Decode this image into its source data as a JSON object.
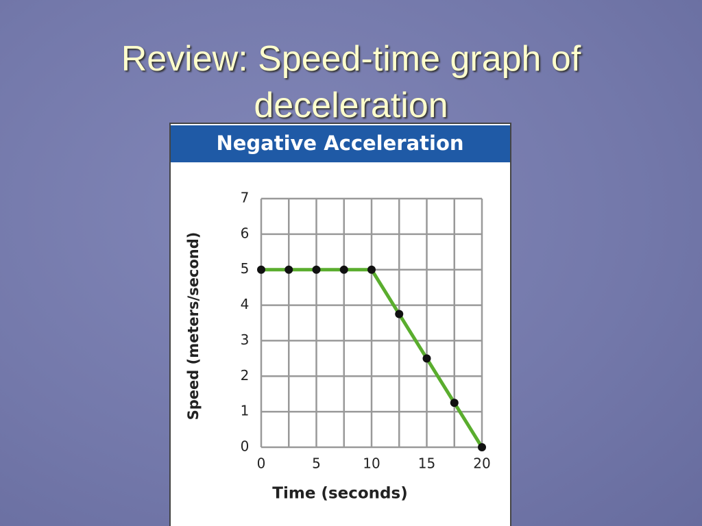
{
  "slide_title": "Review: Speed-time graph of deceleration",
  "chart_data": {
    "type": "line",
    "title": "Negative Acceleration",
    "xlabel": "Time (seconds)",
    "ylabel": "Speed (meters/second)",
    "x": [
      0,
      2.5,
      5,
      7.5,
      10,
      12.5,
      15,
      17.5,
      20
    ],
    "values": [
      5,
      5,
      5,
      5,
      5,
      3.75,
      2.5,
      1.25,
      0
    ],
    "color": "#5aad2e",
    "marker_color": "#111111",
    "xlim": [
      0,
      20
    ],
    "xticks": [
      0,
      5,
      10,
      15,
      20
    ],
    "xgrid": [
      0,
      2.5,
      5,
      7.5,
      10,
      12.5,
      15,
      17.5,
      20
    ],
    "ylim": [
      0,
      7
    ],
    "yticks": [
      0,
      1,
      2,
      3,
      4,
      5,
      6,
      7
    ],
    "grid": true
  }
}
